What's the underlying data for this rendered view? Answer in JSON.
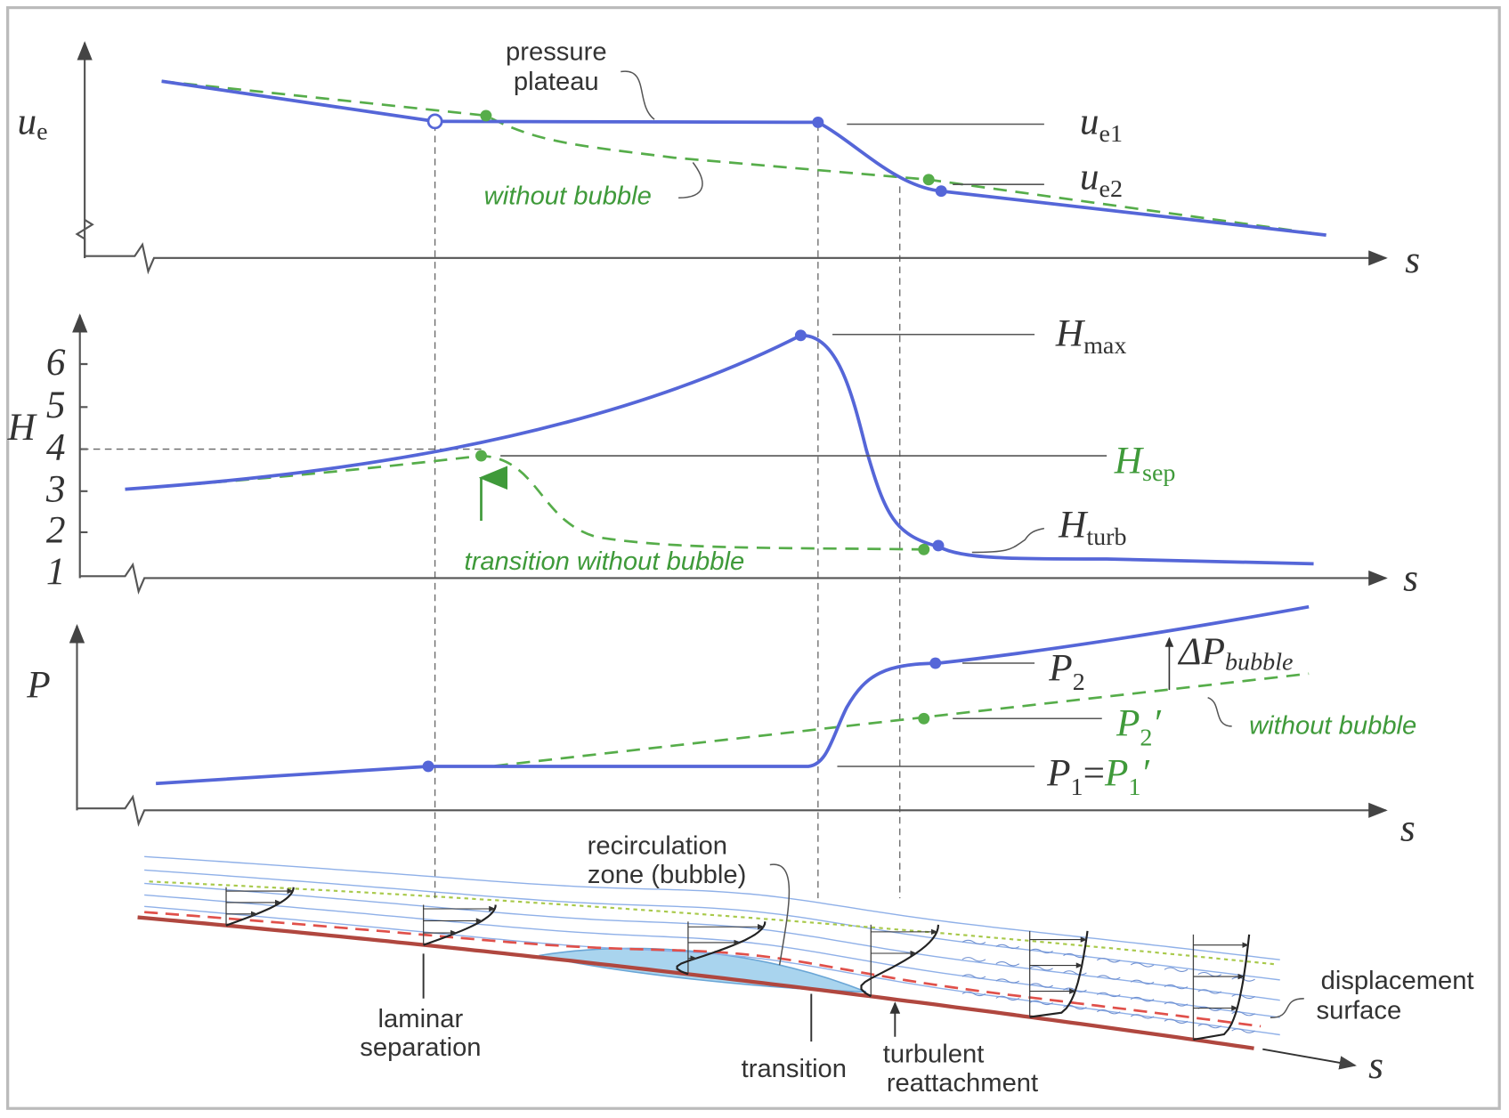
{
  "top": {
    "y_label": {
      "main": "u",
      "sub": "e"
    },
    "x_label": "s",
    "pressure_plateau": [
      "pressure",
      "plateau"
    ],
    "without_bubble": "without bubble",
    "ue1": {
      "main": "u",
      "sub": "e1"
    },
    "ue2": {
      "main": "u",
      "sub": "e2"
    }
  },
  "middle": {
    "y_label": "H",
    "yticks": [
      1,
      2,
      3,
      4,
      5,
      6
    ],
    "x_label": "s",
    "hmax": {
      "main": "H",
      "sub": "max"
    },
    "hsep": {
      "main": "H",
      "sub": "sep"
    },
    "hturb": {
      "main": "H",
      "sub": "turb"
    },
    "transition_without_bubble": "transition without bubble"
  },
  "lower": {
    "y_label": "P",
    "x_label": "s",
    "p2": {
      "main": "P",
      "sub": "2"
    },
    "p2_prime": {
      "main": "P",
      "sub": "2",
      "sup": "′"
    },
    "p1_equals": {
      "left": "P",
      "left_sub": "1",
      "equals": "=",
      "right": "P",
      "right_sub": "1",
      "right_sup": "′"
    },
    "delta_p": {
      "main": "ΔP",
      "sub": "bubble"
    },
    "without_bubble": "without bubble"
  },
  "sketch": {
    "recirculation": [
      "recirculation",
      "zone (bubble)"
    ],
    "laminar_separation": [
      "laminar",
      "separation"
    ],
    "transition": "transition",
    "turbulent_reattachment": [
      "turbulent",
      "reattachment"
    ],
    "displacement_surface": [
      "displacement",
      "surface"
    ],
    "x_label": "s"
  }
}
